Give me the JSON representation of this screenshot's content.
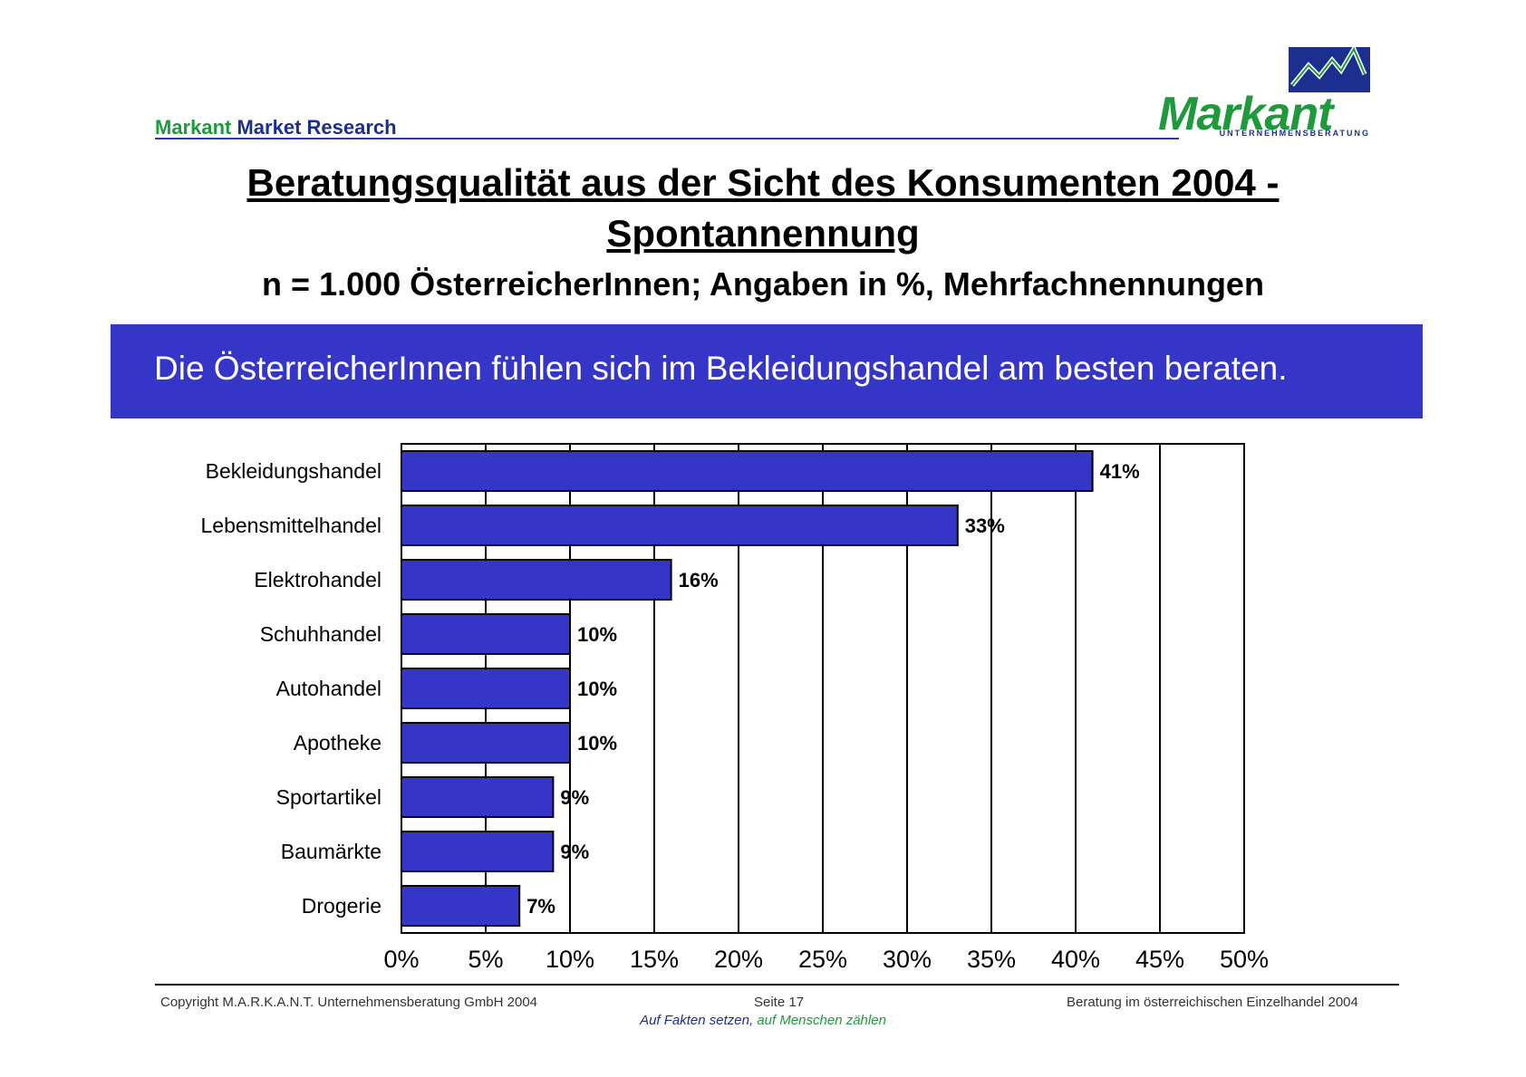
{
  "header": {
    "brand_part1": "Markant",
    "brand_part2": "Market Research"
  },
  "logo": {
    "wordmark": "Markant",
    "subline": "UNTERNEHMENSBERATUNG"
  },
  "title": {
    "line1": "Beratungsqualität aus der Sicht des Konsumenten 2004 -",
    "line2": "Spontannennung",
    "subtitle": "n = 1.000 ÖsterreicherInnen; Angaben in %, Mehrfachnennungen"
  },
  "banner": {
    "text": "Die ÖsterreicherInnen fühlen sich im Bekleidungshandel am besten beraten."
  },
  "chart_data": {
    "type": "bar",
    "orientation": "horizontal",
    "categories": [
      "Bekleidungshandel",
      "Lebensmittelhandel",
      "Elektrohandel",
      "Schuhhandel",
      "Autohandel",
      "Apotheke",
      "Sportartikel",
      "Baumärkte",
      "Drogerie"
    ],
    "values": [
      41,
      33,
      16,
      10,
      10,
      10,
      9,
      9,
      7
    ],
    "value_labels": [
      "41%",
      "33%",
      "16%",
      "10%",
      "10%",
      "10%",
      "9%",
      "9%",
      "7%"
    ],
    "xlim": [
      0,
      50
    ],
    "x_ticks": [
      "0%",
      "5%",
      "10%",
      "15%",
      "20%",
      "25%",
      "30%",
      "35%",
      "40%",
      "45%",
      "50%"
    ],
    "grid": "vertical",
    "colors": {
      "bar": "#3535c8",
      "bar_edge": "#000000",
      "grid": "#000000"
    }
  },
  "footer": {
    "copyright": "Copyright  M.A.R.K.A.N.T. Unternehmensberatung GmbH 2004",
    "page": "Seite  17",
    "report": "Beratung im österreichischen Einzelhandel  2004",
    "slogan_part1": "Auf Fakten setzen,",
    "slogan_part2": " auf Menschen zählen"
  },
  "colors": {
    "banner": "#3535c8",
    "brand_green": "#1e9a3c",
    "brand_blue": "#1c2f8f"
  }
}
